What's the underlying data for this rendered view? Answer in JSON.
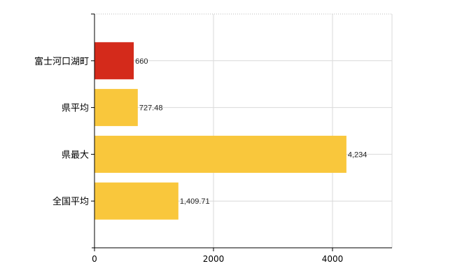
{
  "chart_data": {
    "type": "bar",
    "orientation": "horizontal",
    "categories": [
      "富士河口湖町",
      "県平均",
      "県最大",
      "全国平均"
    ],
    "values": [
      660,
      727.48,
      4234,
      1409.71
    ],
    "data_labels": [
      "660",
      "727.48",
      "4,234",
      "1,409.71"
    ],
    "colors": [
      "#d42a1b",
      "#f9c73c",
      "#f9c73c",
      "#f9c73c"
    ],
    "xlim": [
      0,
      5000
    ],
    "x_ticks": [
      0,
      2000,
      4000
    ],
    "x_tick_labels": [
      "0",
      "2000",
      "4000"
    ],
    "grid": true,
    "title": "",
    "xlabel": "",
    "ylabel": ""
  }
}
